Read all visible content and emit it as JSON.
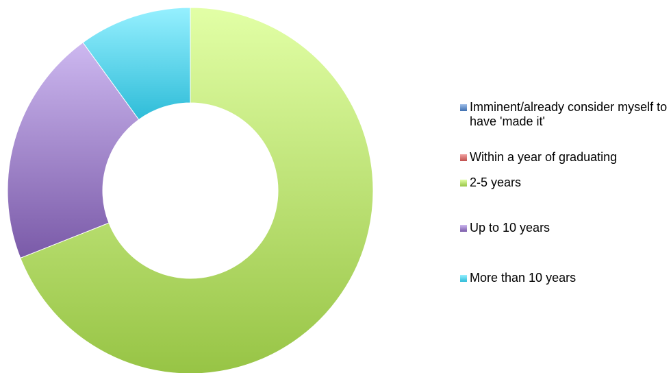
{
  "chart_data": {
    "type": "pie",
    "donut": true,
    "title": "",
    "categories": [
      "Imminent/already consider myself to have 'made it'",
      "Within a year of graduating",
      "2-5 years",
      "Up to 10 years",
      "More than 10 years"
    ],
    "values": [
      0,
      0,
      69,
      21,
      10
    ],
    "unit": "%",
    "colors": {
      "Imminent/already consider myself to have 'made it'": "#4f81bd",
      "Within a year of graduating": "#c0504d",
      "2-5 years": "#b6e16a",
      "Up to 10 years": "#9b7fcc",
      "More than 10 years": "#5ad0e8"
    },
    "legend_position": "right"
  },
  "legend": {
    "items": [
      {
        "label": "Imminent/already consider myself to have 'made it'",
        "color": "#4f81bd"
      },
      {
        "label": "Within a year of graduating",
        "color": "#c0504d"
      },
      {
        "label": "2-5 years",
        "color": "#9bbb59"
      },
      {
        "label": "Up to 10 years",
        "color": "#8064a2"
      },
      {
        "label": "More than 10 years",
        "color": "#4bacc6"
      }
    ]
  }
}
